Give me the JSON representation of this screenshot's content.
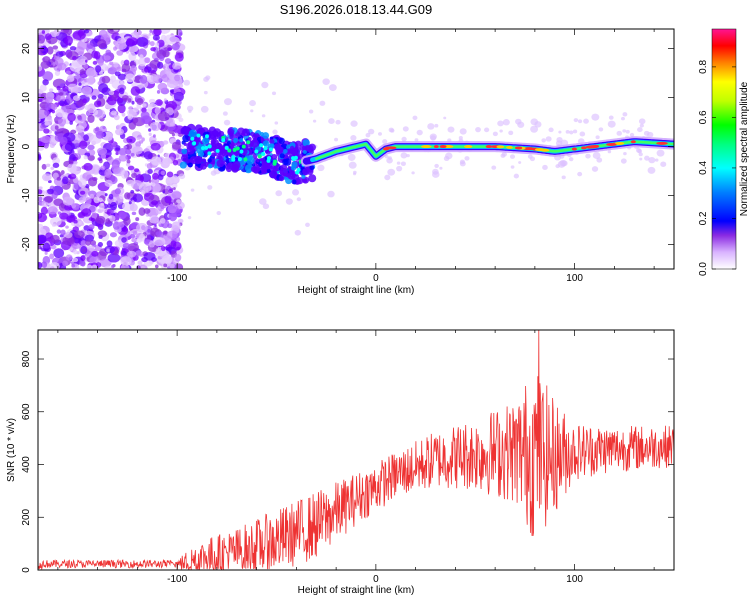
{
  "title": "S196.2026.018.13.44.G09",
  "chart_data": [
    {
      "type": "heatmap",
      "xlabel": "Height of straight line (km)",
      "ylabel": "Frequency (Hz)",
      "xlim": [
        -170,
        150
      ],
      "ylim": [
        -25,
        24
      ],
      "xticks": [
        -100,
        0,
        100
      ],
      "yticks": [
        -20,
        -10,
        0,
        10,
        20
      ],
      "colorbar": {
        "label": "Normalized spectral amplitude",
        "range": [
          0,
          0.95
        ],
        "ticks": [
          0.0,
          0.2,
          0.4,
          0.6,
          0.8
        ],
        "colors": [
          "#ffffff",
          "#d9b3ff",
          "#8a2be2",
          "#5500ff",
          "#0000ff",
          "#0080ff",
          "#00ffff",
          "#00ff80",
          "#00ff00",
          "#80ff00",
          "#ffff00",
          "#ffa500",
          "#ff4500",
          "#ff0000",
          "#ff1493"
        ]
      },
      "ridge": [
        {
          "x": -95,
          "f": 0
        },
        {
          "x": -60,
          "f": -1
        },
        {
          "x": -40,
          "f": -3.5
        },
        {
          "x": -30,
          "f": -2.5
        },
        {
          "x": -20,
          "f": -1
        },
        {
          "x": -10,
          "f": 0
        },
        {
          "x": -5,
          "f": 0.5
        },
        {
          "x": 0,
          "f": -2
        },
        {
          "x": 5,
          "f": -0.5
        },
        {
          "x": 10,
          "f": 0
        },
        {
          "x": 60,
          "f": 0
        },
        {
          "x": 80,
          "f": -0.5
        },
        {
          "x": 90,
          "f": -1
        },
        {
          "x": 110,
          "f": 0
        },
        {
          "x": 130,
          "f": 1
        },
        {
          "x": 150,
          "f": 0.5
        }
      ]
    },
    {
      "type": "line",
      "xlabel": "Height of straight line (km)",
      "ylabel": "SNR (10 * v/v)",
      "xlim": [
        -170,
        150
      ],
      "ylim": [
        0,
        910
      ],
      "xticks": [
        -100,
        0,
        100
      ],
      "yticks": [
        0,
        200,
        400,
        600,
        800
      ],
      "color": "#ee3333",
      "envelope": [
        {
          "x": -170,
          "base": 15,
          "amp": 15
        },
        {
          "x": -100,
          "base": 20,
          "amp": 20
        },
        {
          "x": -90,
          "base": 40,
          "amp": 70
        },
        {
          "x": -70,
          "base": 70,
          "amp": 90
        },
        {
          "x": -50,
          "base": 110,
          "amp": 120
        },
        {
          "x": -30,
          "base": 170,
          "amp": 130
        },
        {
          "x": -10,
          "base": 270,
          "amp": 100
        },
        {
          "x": 10,
          "base": 360,
          "amp": 90
        },
        {
          "x": 30,
          "base": 420,
          "amp": 110
        },
        {
          "x": 50,
          "base": 440,
          "amp": 140
        },
        {
          "x": 70,
          "base": 450,
          "amp": 200
        },
        {
          "x": 80,
          "base": 440,
          "amp": 340
        },
        {
          "x": 90,
          "base": 430,
          "amp": 220
        },
        {
          "x": 100,
          "base": 450,
          "amp": 110
        },
        {
          "x": 120,
          "base": 460,
          "amp": 90
        },
        {
          "x": 150,
          "base": 470,
          "amp": 80
        }
      ],
      "peak": {
        "x": 82,
        "y": 910
      }
    }
  ]
}
